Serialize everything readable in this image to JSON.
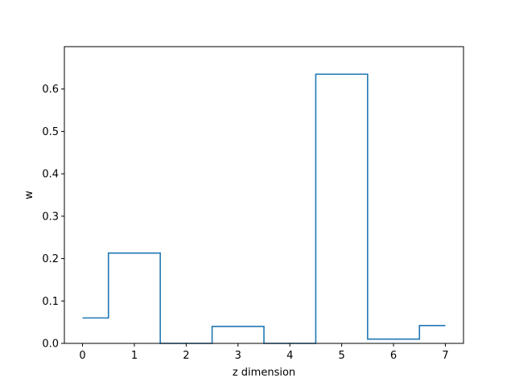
{
  "chart_data": {
    "type": "line",
    "drawstyle": "steps-mid",
    "title": "",
    "xlabel": "z dimension",
    "ylabel": "w",
    "x": [
      0,
      1,
      2,
      3,
      4,
      5,
      6,
      7
    ],
    "values": [
      0.06,
      0.213,
      0.0,
      0.04,
      0.0,
      0.635,
      0.01,
      0.042
    ],
    "xlim": [
      -0.35,
      7.35
    ],
    "ylim": [
      0,
      0.7
    ],
    "xticks": [
      "0",
      "1",
      "2",
      "3",
      "4",
      "5",
      "6",
      "7"
    ],
    "yticks": [
      "0.0",
      "0.1",
      "0.2",
      "0.3",
      "0.4",
      "0.5",
      "0.6"
    ],
    "grid": false,
    "color": "#1f77b4"
  }
}
